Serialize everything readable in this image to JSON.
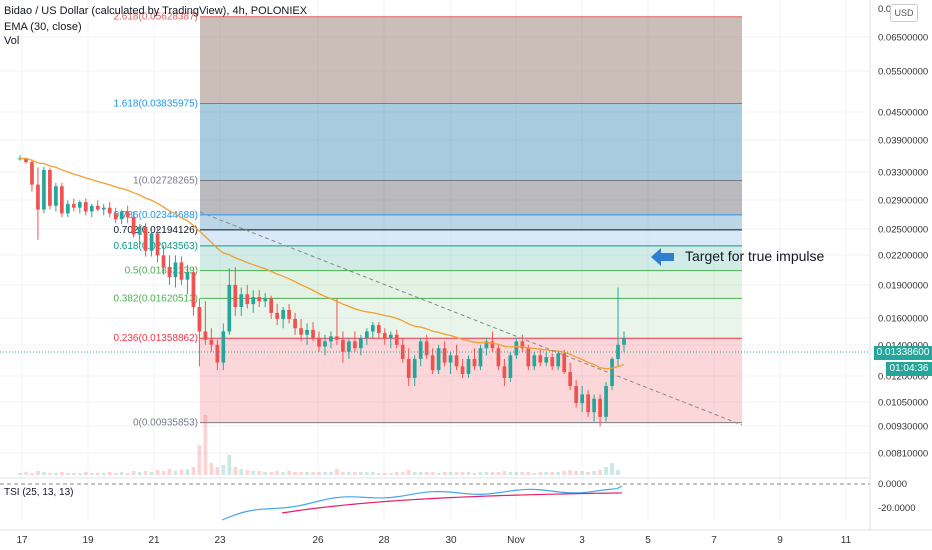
{
  "header": {
    "title": "Bidao / US Dollar (calculated by TradingView), 4h, POLONIEX",
    "ema_label": "EMA (30, close)",
    "vol_label": "Vol"
  },
  "currency_badge": "USD",
  "price_badge": "0.01338600",
  "timer_badge": "01:04:36",
  "annotation": "Target for true impulse",
  "tsi_label": "TSI (25, 13, 13)",
  "colors": {
    "up": "#26a69a",
    "down": "#ef5350",
    "ema": "#f0a030",
    "tsi": "#42a5f5",
    "tsi_signal": "#e91e63",
    "arrow": "#2f7fd0"
  },
  "chart_data": {
    "type": "candlestick",
    "y_axis_ticks": [
      "0.06500000",
      "0.05500000",
      "0.04500000",
      "0.03900000",
      "0.03300000",
      "0.02900000",
      "0.02500000",
      "0.02200000",
      "0.01900000",
      "0.01600000",
      "0.01400000",
      "0.01200000",
      "0.01050000",
      "0.00930000",
      "0.00810000"
    ],
    "y_axis_top_tick": "0.0",
    "tsi_ticks": [
      "0.0000",
      "-20.0000"
    ],
    "x_ticks": [
      "17",
      "19",
      "21",
      "23",
      "26",
      "28",
      "30",
      "Nov",
      "3",
      "5",
      "7",
      "9",
      "11"
    ],
    "fib_levels": [
      {
        "label": "2.618(0.05628387)",
        "ratio": 2.618,
        "price": 0.05628387,
        "color": "#e06060"
      },
      {
        "label": "1.618(0.03835975)",
        "ratio": 1.618,
        "price": 0.03835975,
        "color": "#2196f3"
      },
      {
        "label": "1(0.02728265)",
        "ratio": 1,
        "price": 0.02728265,
        "color": "#787b86"
      },
      {
        "label": "0.786(0.02344688)",
        "ratio": 0.786,
        "price": 0.02344688,
        "color": "#2196f3"
      },
      {
        "label": "0.702(0.02194126)",
        "ratio": 0.702,
        "price": 0.02194126,
        "color": "#131722"
      },
      {
        "label": "0.618(0.02043563)",
        "ratio": 0.618,
        "price": 0.02043563,
        "color": "#089981"
      },
      {
        "label": "0.5(0.01832239)",
        "ratio": 0.5,
        "price": 0.01832239,
        "color": "#4caf50"
      },
      {
        "label": "0.382(0.01620513)",
        "ratio": 0.382,
        "price": 0.01620513,
        "color": "#4caf50"
      },
      {
        "label": "0.236(0.01358862)",
        "ratio": 0.236,
        "price": 0.01358862,
        "color": "#f23645"
      },
      {
        "label": "0(0.00935853)",
        "ratio": 0,
        "price": 0.00935853,
        "color": "#787b86"
      }
    ],
    "current_price": 0.013386
  }
}
